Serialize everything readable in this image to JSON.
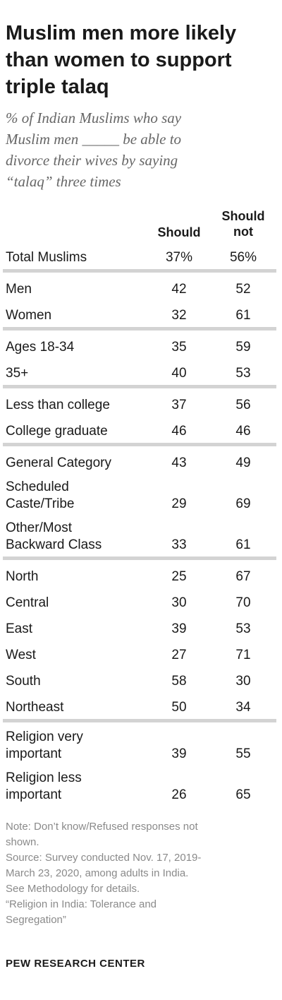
{
  "chart_data": {
    "type": "table",
    "title_lines": [
      "Muslim men more likely",
      "than women to support",
      "triple talaq"
    ],
    "subtitle_lines": [
      "% of Indian Muslims who say",
      "Muslim men _____ be able to",
      "divorce their wives by saying",
      "“talaq” three times"
    ],
    "columns": [
      {
        "key": "should",
        "lines": [
          "Should"
        ]
      },
      {
        "key": "should_not",
        "lines": [
          "Should",
          "not"
        ]
      }
    ],
    "groups": [
      [
        {
          "label_lines": [
            "Total Muslims"
          ],
          "should": "37%",
          "should_not": "56%"
        }
      ],
      [
        {
          "label_lines": [
            "Men"
          ],
          "should": "42",
          "should_not": "52"
        },
        {
          "label_lines": [
            "Women"
          ],
          "should": "32",
          "should_not": "61"
        }
      ],
      [
        {
          "label_lines": [
            "Ages 18-34"
          ],
          "should": "35",
          "should_not": "59"
        },
        {
          "label_lines": [
            "35+"
          ],
          "should": "40",
          "should_not": "53"
        }
      ],
      [
        {
          "label_lines": [
            "Less than college"
          ],
          "should": "37",
          "should_not": "56"
        },
        {
          "label_lines": [
            "College graduate"
          ],
          "should": "46",
          "should_not": "46"
        }
      ],
      [
        {
          "label_lines": [
            "General Category"
          ],
          "should": "43",
          "should_not": "49"
        },
        {
          "label_lines": [
            "Scheduled",
            "Caste/Tribe"
          ],
          "should": "29",
          "should_not": "69"
        },
        {
          "label_lines": [
            "Other/Most",
            "Backward Class"
          ],
          "should": "33",
          "should_not": "61"
        }
      ],
      [
        {
          "label_lines": [
            "North"
          ],
          "should": "25",
          "should_not": "67"
        },
        {
          "label_lines": [
            "Central"
          ],
          "should": "30",
          "should_not": "70"
        },
        {
          "label_lines": [
            "East"
          ],
          "should": "39",
          "should_not": "53"
        },
        {
          "label_lines": [
            "West"
          ],
          "should": "27",
          "should_not": "71"
        },
        {
          "label_lines": [
            "South"
          ],
          "should": "58",
          "should_not": "30"
        },
        {
          "label_lines": [
            "Northeast"
          ],
          "should": "50",
          "should_not": "34"
        }
      ],
      [
        {
          "label_lines": [
            "Religion very",
            "important"
          ],
          "should": "39",
          "should_not": "55"
        },
        {
          "label_lines": [
            "Religion less",
            "important"
          ],
          "should": "26",
          "should_not": "65"
        }
      ]
    ],
    "divider_color": "#d3d3d3"
  },
  "footer": {
    "note_lines": [
      "Note: Don’t know/Refused responses not",
      "shown.",
      "Source: Survey conducted Nov. 17, 2019-",
      "March 23, 2020, among adults in India.",
      "See Methodology for details.",
      "“Religion in India: Tolerance and",
      "Segregation”"
    ],
    "brand": "PEW RESEARCH CENTER"
  }
}
